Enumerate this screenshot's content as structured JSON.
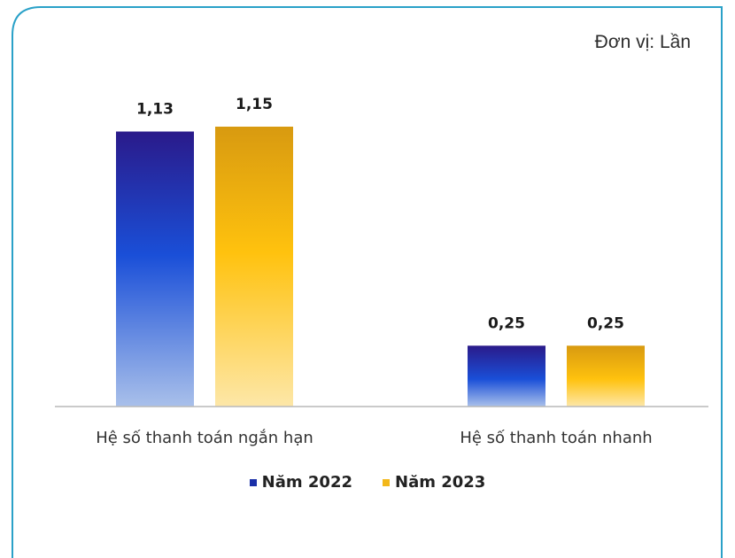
{
  "unit_label": "Đơn vị: Lần",
  "colors": {
    "frame": "#2aa1c8",
    "series_2022_top": "#2a1a8a",
    "series_2022_mid": "#1a4fd8",
    "series_2022_bottom": "#a9c0ea",
    "series_2023_top": "#d89a10",
    "series_2023_mid": "#ffc20e",
    "series_2023_bottom": "#fde7a8",
    "axis": "#b9b9b9"
  },
  "chart_data": {
    "type": "bar",
    "categories": [
      "Hệ số thanh toán ngắn hạn",
      "Hệ số thanh toán nhanh"
    ],
    "series": [
      {
        "name": "Năm 2022",
        "values": [
          1.13,
          0.25
        ],
        "labels": [
          "1,13",
          "0,25"
        ]
      },
      {
        "name": "Năm 2023",
        "values": [
          1.15,
          0.25
        ],
        "labels": [
          "1,15",
          "0,25"
        ]
      }
    ],
    "ylim": [
      0,
      1.15
    ],
    "grid": false,
    "legend_position": "bottom"
  }
}
